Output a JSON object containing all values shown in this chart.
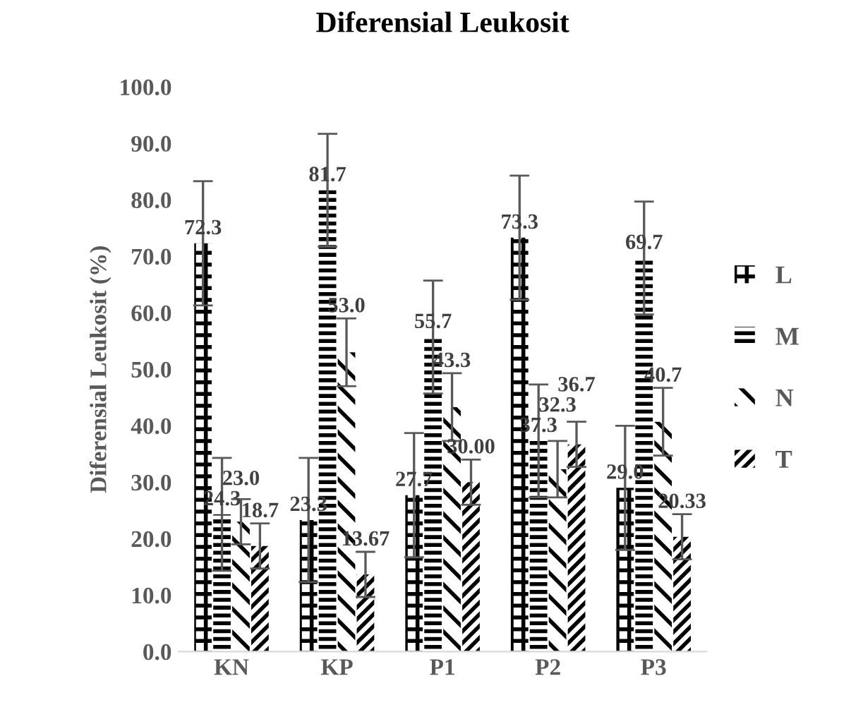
{
  "chart_data": {
    "type": "bar",
    "title": "Diferensial Leukosit",
    "ylabel": "Diferensial Leukosit (%)",
    "categories": [
      "KN",
      "KP",
      "P1",
      "P2",
      "P3"
    ],
    "series": [
      {
        "name": "L",
        "color": "#000000",
        "values": [
          72.3,
          23.3,
          27.7,
          73.3,
          29.0
        ],
        "value_labels": [
          "72.3",
          "23.3",
          "27.7",
          "73.3",
          "29.0"
        ],
        "errors": [
          11,
          11,
          11,
          11,
          11
        ]
      },
      {
        "name": "M",
        "color": "#000000",
        "values": [
          24.3,
          81.7,
          55.7,
          37.3,
          69.7
        ],
        "value_labels": [
          "24.3",
          "81.7",
          "55.7",
          "37.3",
          "69.7"
        ],
        "errors": [
          10,
          10,
          10,
          10,
          10
        ]
      },
      {
        "name": "N",
        "color": "#000000",
        "values": [
          23.0,
          53.0,
          43.3,
          32.3,
          40.7
        ],
        "value_labels": [
          "23.0",
          "53.0",
          "43.3",
          "32.3",
          "40.7"
        ],
        "errors": [
          4,
          6,
          6,
          5,
          6
        ]
      },
      {
        "name": "T",
        "color": "#000000",
        "values": [
          18.7,
          13.67,
          30.0,
          36.7,
          20.33
        ],
        "value_labels": [
          "18.7",
          "13.67",
          "30.00",
          "36.7",
          "20.33"
        ],
        "errors": [
          4,
          4,
          4,
          4,
          4
        ]
      }
    ],
    "ylim": [
      0,
      100
    ],
    "yticks": [
      {
        "value": 0,
        "label": "0.0"
      },
      {
        "value": 10,
        "label": "10.0"
      },
      {
        "value": 20,
        "label": "20.0"
      },
      {
        "value": 30,
        "label": "30.0"
      },
      {
        "value": 40,
        "label": "40.0"
      },
      {
        "value": 50,
        "label": "50.0"
      },
      {
        "value": 60,
        "label": "60.0"
      },
      {
        "value": 70,
        "label": "70.0"
      },
      {
        "value": 80,
        "label": "80.0"
      },
      {
        "value": 90,
        "label": "90.0"
      },
      {
        "value": 100,
        "label": "100.0"
      }
    ],
    "grid": false,
    "legend": "right"
  }
}
